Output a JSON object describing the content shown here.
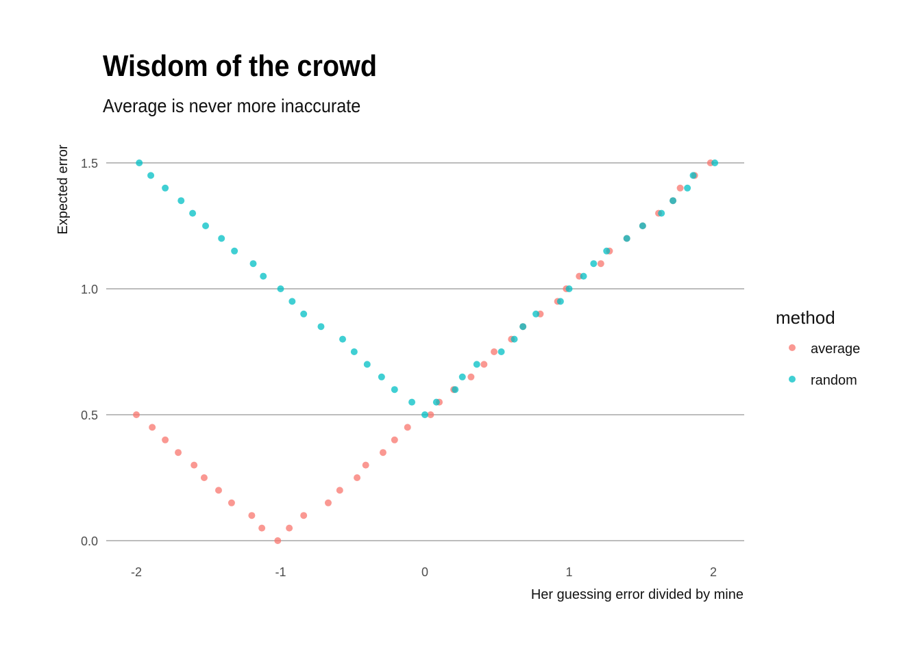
{
  "title": "Wisdom of the crowd",
  "subtitle": "Average is never more inaccurate",
  "chart_data": {
    "type": "scatter",
    "title": "Wisdom of the crowd",
    "subtitle": "Average is never more inaccurate",
    "xlabel": "Her guessing error divided by mine",
    "ylabel": "Expected error",
    "xlim": [
      -2.2,
      2.2
    ],
    "ylim": [
      -0.07,
      1.57
    ],
    "x_ticks": [
      -2,
      -1,
      0,
      1,
      2
    ],
    "x_tick_labels": [
      "-2",
      "-1",
      "0",
      "1",
      "2"
    ],
    "y_ticks": [
      0,
      0.5,
      1,
      1.5
    ],
    "y_tick_labels": [
      "0.0",
      "0.5",
      "1.0",
      "1.5"
    ],
    "grid": "horizontal major lines",
    "legend": {
      "title": "method",
      "position": "right"
    },
    "series": [
      {
        "name": "average",
        "color": "#F8766D",
        "points": [
          [
            -2.0,
            0.5
          ],
          [
            -1.89,
            0.45
          ],
          [
            -1.8,
            0.4
          ],
          [
            -1.71,
            0.35
          ],
          [
            -1.6,
            0.3
          ],
          [
            -1.53,
            0.25
          ],
          [
            -1.43,
            0.2
          ],
          [
            -1.34,
            0.15
          ],
          [
            -1.2,
            0.1
          ],
          [
            -1.13,
            0.05
          ],
          [
            -1.02,
            0.0
          ],
          [
            -0.94,
            0.05
          ],
          [
            -0.84,
            0.1
          ],
          [
            -0.67,
            0.15
          ],
          [
            -0.59,
            0.2
          ],
          [
            -0.47,
            0.25
          ],
          [
            -0.41,
            0.3
          ],
          [
            -0.29,
            0.35
          ],
          [
            -0.21,
            0.4
          ],
          [
            -0.12,
            0.45
          ],
          [
            0.04,
            0.5
          ],
          [
            0.1,
            0.55
          ],
          [
            0.2,
            0.6
          ],
          [
            0.32,
            0.65
          ],
          [
            0.41,
            0.7
          ],
          [
            0.48,
            0.75
          ],
          [
            0.6,
            0.8
          ],
          [
            0.68,
            0.85
          ],
          [
            0.8,
            0.9
          ],
          [
            0.92,
            0.95
          ],
          [
            0.98,
            1.0
          ],
          [
            1.07,
            1.05
          ],
          [
            1.22,
            1.1
          ],
          [
            1.28,
            1.15
          ],
          [
            1.4,
            1.2
          ],
          [
            1.51,
            1.25
          ],
          [
            1.62,
            1.3
          ],
          [
            1.72,
            1.35
          ],
          [
            1.77,
            1.4
          ],
          [
            1.87,
            1.45
          ],
          [
            1.98,
            1.5
          ]
        ]
      },
      {
        "name": "random",
        "color": "#00BFC4",
        "points": [
          [
            -1.98,
            1.5
          ],
          [
            -1.9,
            1.45
          ],
          [
            -1.8,
            1.4
          ],
          [
            -1.69,
            1.35
          ],
          [
            -1.61,
            1.3
          ],
          [
            -1.52,
            1.25
          ],
          [
            -1.41,
            1.2
          ],
          [
            -1.32,
            1.15
          ],
          [
            -1.19,
            1.1
          ],
          [
            -1.12,
            1.05
          ],
          [
            -1.0,
            1.0
          ],
          [
            -0.92,
            0.95
          ],
          [
            -0.84,
            0.9
          ],
          [
            -0.72,
            0.85
          ],
          [
            -0.57,
            0.8
          ],
          [
            -0.49,
            0.75
          ],
          [
            -0.4,
            0.7
          ],
          [
            -0.3,
            0.65
          ],
          [
            -0.21,
            0.6
          ],
          [
            -0.09,
            0.55
          ],
          [
            0.0,
            0.5
          ],
          [
            0.08,
            0.55
          ],
          [
            0.21,
            0.6
          ],
          [
            0.26,
            0.65
          ],
          [
            0.36,
            0.7
          ],
          [
            0.53,
            0.75
          ],
          [
            0.62,
            0.8
          ],
          [
            0.68,
            0.85
          ],
          [
            0.77,
            0.9
          ],
          [
            0.94,
            0.95
          ],
          [
            1.0,
            1.0
          ],
          [
            1.1,
            1.05
          ],
          [
            1.17,
            1.1
          ],
          [
            1.26,
            1.15
          ],
          [
            1.4,
            1.2
          ],
          [
            1.51,
            1.25
          ],
          [
            1.64,
            1.3
          ],
          [
            1.72,
            1.35
          ],
          [
            1.82,
            1.4
          ],
          [
            1.86,
            1.45
          ],
          [
            2.01,
            1.5
          ]
        ]
      }
    ]
  }
}
